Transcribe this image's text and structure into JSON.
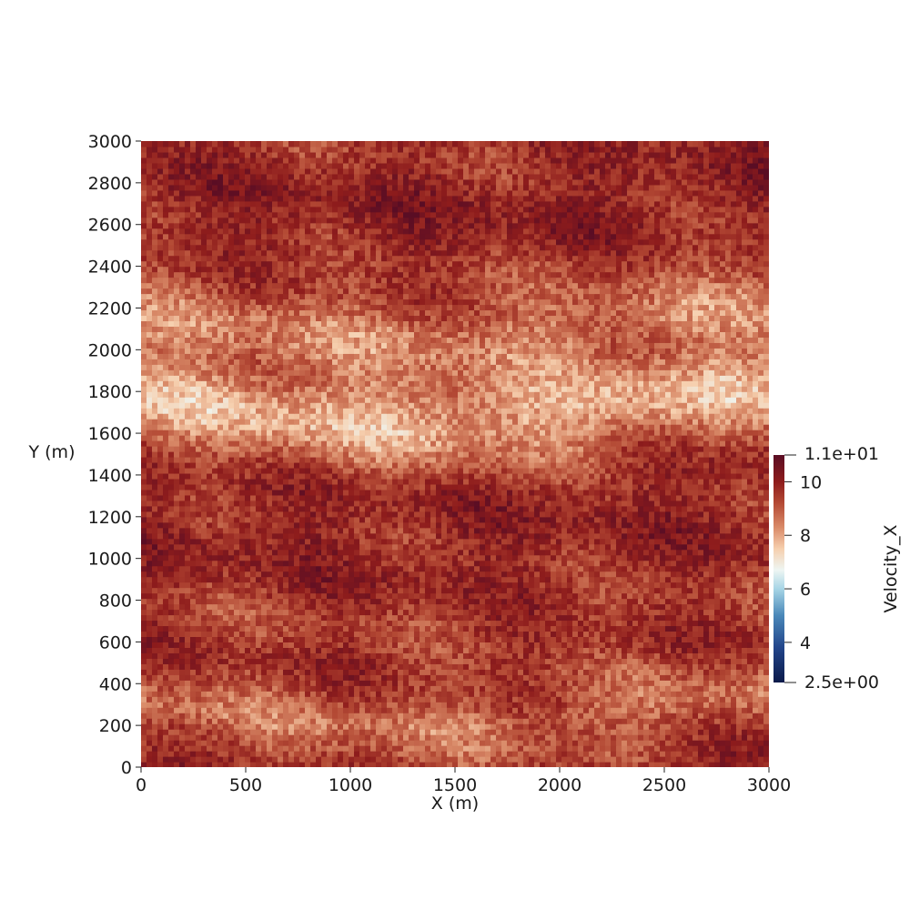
{
  "chart_data": {
    "type": "heatmap",
    "field": "Velocity_X",
    "xlabel": "X (m)",
    "ylabel": "Y (m)",
    "xlim": [
      0,
      3000
    ],
    "ylim": [
      0,
      3000
    ],
    "x_ticks": [
      0,
      500,
      1000,
      1500,
      2000,
      2500,
      3000
    ],
    "y_ticks": [
      0,
      200,
      400,
      600,
      800,
      1000,
      1200,
      1400,
      1600,
      1800,
      2000,
      2200,
      2400,
      2600,
      2800,
      3000
    ],
    "grid": false,
    "colormap": "blue-white-red (cool to warm, dark extremes)",
    "color_range": [
      2.5,
      11
    ],
    "colorbar": {
      "title": "Velocity_X",
      "max_label": "1.1e+01",
      "min_label": "2.5e+00",
      "tick_values": [
        10,
        8,
        6,
        4
      ],
      "placement": "right"
    },
    "colormap_stops": [
      {
        "v": 2.5,
        "color": "#0b1a4a"
      },
      {
        "v": 3.8,
        "color": "#22458a"
      },
      {
        "v": 5.0,
        "color": "#4a88b9"
      },
      {
        "v": 6.0,
        "color": "#a7d5e6"
      },
      {
        "v": 6.7,
        "color": "#eef6f3"
      },
      {
        "v": 7.5,
        "color": "#f6cfae"
      },
      {
        "v": 8.3,
        "color": "#d98a68"
      },
      {
        "v": 9.2,
        "color": "#b44a35"
      },
      {
        "v": 10.0,
        "color": "#8e1c1c"
      },
      {
        "v": 11.0,
        "color": "#5a0d24"
      }
    ],
    "dominant_value": 9.7,
    "band_profile": [
      {
        "y": 0,
        "value": 9.8
      },
      {
        "y": 100,
        "value": 9.3
      },
      {
        "y": 200,
        "value": 9.0
      },
      {
        "y": 300,
        "value": 8.7
      },
      {
        "y": 400,
        "value": 9.1
      },
      {
        "y": 500,
        "value": 9.4
      },
      {
        "y": 600,
        "value": 9.6
      },
      {
        "y": 800,
        "value": 9.5
      },
      {
        "y": 1000,
        "value": 9.8
      },
      {
        "y": 1200,
        "value": 9.9
      },
      {
        "y": 1400,
        "value": 9.8
      },
      {
        "y": 1550,
        "value": 9.0
      },
      {
        "y": 1700,
        "value": 8.0
      },
      {
        "y": 1800,
        "value": 7.9
      },
      {
        "y": 1900,
        "value": 8.3
      },
      {
        "y": 2000,
        "value": 8.6
      },
      {
        "y": 2100,
        "value": 8.5
      },
      {
        "y": 2200,
        "value": 8.6
      },
      {
        "y": 2300,
        "value": 9.0
      },
      {
        "y": 2400,
        "value": 9.3
      },
      {
        "y": 2600,
        "value": 9.9
      },
      {
        "y": 2800,
        "value": 10.0
      },
      {
        "y": 3000,
        "value": 9.7
      }
    ]
  }
}
